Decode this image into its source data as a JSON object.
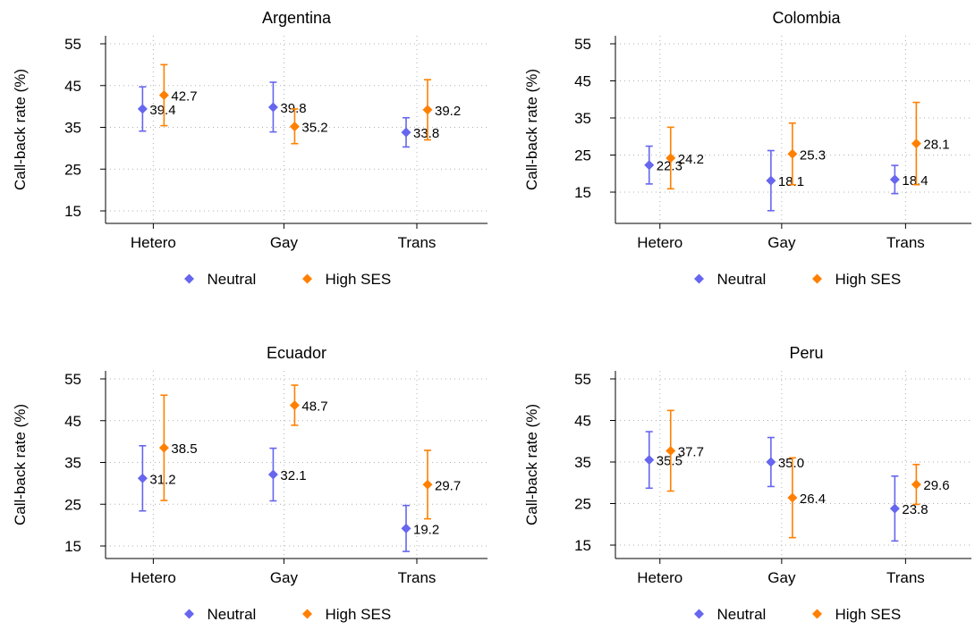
{
  "colors": {
    "neutral": "#6666ee",
    "high_ses": "#ff8000",
    "grid": "#b0b0b0",
    "axis": "#000000"
  },
  "chart_data": [
    {
      "type": "scatter",
      "title": "Argentina",
      "ylabel": "Call-back rate (%)",
      "categories": [
        "Hetero",
        "Gay",
        "Trans"
      ],
      "yticks": [
        "15",
        "25",
        "35",
        "45",
        "55"
      ],
      "ylim": [
        12,
        57
      ],
      "grid": true,
      "legend": [
        "Neutral",
        "High SES"
      ],
      "legend_position": "bottom",
      "series": [
        {
          "name": "Neutral",
          "values": [
            39.4,
            39.8,
            33.8
          ],
          "labels": [
            "39.4",
            "39.8",
            "33.8"
          ],
          "ci_low": [
            34.1,
            33.9,
            30.3
          ],
          "ci_high": [
            44.7,
            45.8,
            37.3
          ]
        },
        {
          "name": "High SES",
          "values": [
            42.7,
            35.2,
            39.2
          ],
          "labels": [
            "42.7",
            "35.2",
            "39.2"
          ],
          "ci_low": [
            35.4,
            31.1,
            32.0
          ],
          "ci_high": [
            50.0,
            39.4,
            46.4
          ]
        }
      ]
    },
    {
      "type": "scatter",
      "title": "Colombia",
      "ylabel": "Call-back rate (%)",
      "categories": [
        "Hetero",
        "Gay",
        "Trans"
      ],
      "yticks": [
        "15",
        "25",
        "35",
        "45",
        "55"
      ],
      "ylim": [
        8,
        57
      ],
      "grid": true,
      "legend": [
        "Neutral",
        "High SES"
      ],
      "legend_position": "bottom",
      "series": [
        {
          "name": "Neutral",
          "values": [
            22.3,
            18.1,
            18.4
          ],
          "labels": [
            "22.3",
            "18.1",
            "18.4"
          ],
          "ci_low": [
            17.2,
            10.0,
            14.6
          ],
          "ci_high": [
            27.4,
            26.2,
            22.2
          ]
        },
        {
          "name": "High SES",
          "values": [
            24.2,
            25.3,
            28.1
          ],
          "labels": [
            "24.2",
            "25.3",
            "28.1"
          ],
          "ci_low": [
            15.9,
            17.0,
            17.0
          ],
          "ci_high": [
            32.5,
            33.6,
            39.2
          ]
        }
      ]
    },
    {
      "type": "scatter",
      "title": "Ecuador",
      "ylabel": "Call-back rate (%)",
      "categories": [
        "Hetero",
        "Gay",
        "Trans"
      ],
      "yticks": [
        "15",
        "25",
        "35",
        "45",
        "55"
      ],
      "ylim": [
        12,
        57
      ],
      "grid": true,
      "legend": [
        "Neutral",
        "High SES"
      ],
      "legend_position": "bottom",
      "series": [
        {
          "name": "Neutral",
          "values": [
            31.2,
            32.1,
            19.2
          ],
          "labels": [
            "31.2",
            "32.1",
            "19.2"
          ],
          "ci_low": [
            23.4,
            25.8,
            13.7
          ],
          "ci_high": [
            39.0,
            38.4,
            24.7
          ]
        },
        {
          "name": "High SES",
          "values": [
            38.5,
            48.7,
            29.7
          ],
          "labels": [
            "38.5",
            "48.7",
            "29.7"
          ],
          "ci_low": [
            25.9,
            43.9,
            21.5
          ],
          "ci_high": [
            51.1,
            53.5,
            37.9
          ]
        }
      ]
    },
    {
      "type": "scatter",
      "title": "Peru",
      "ylabel": "Call-back rate (%)",
      "categories": [
        "Hetero",
        "Gay",
        "Trans"
      ],
      "yticks": [
        "15",
        "25",
        "35",
        "45",
        "55"
      ],
      "ylim": [
        13,
        57
      ],
      "grid": true,
      "legend": [
        "Neutral",
        "High SES"
      ],
      "legend_position": "bottom",
      "series": [
        {
          "name": "Neutral",
          "values": [
            35.5,
            35.0,
            23.8
          ],
          "labels": [
            "35.5",
            "35.0",
            "23.8"
          ],
          "ci_low": [
            28.7,
            29.1,
            16.0
          ],
          "ci_high": [
            42.3,
            40.9,
            31.6
          ]
        },
        {
          "name": "High SES",
          "values": [
            37.7,
            26.4,
            29.6
          ],
          "labels": [
            "37.7",
            "26.4",
            "29.6"
          ],
          "ci_low": [
            28.0,
            16.8,
            24.8
          ],
          "ci_high": [
            47.4,
            36.0,
            34.4
          ]
        }
      ]
    }
  ]
}
